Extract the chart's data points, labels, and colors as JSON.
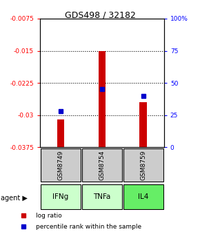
{
  "title": "GDS498 / 32182",
  "samples": [
    "GSM8749",
    "GSM8754",
    "GSM8759"
  ],
  "agents": [
    "IFNg",
    "TNFa",
    "IL4"
  ],
  "bar_bottom": -0.0375,
  "log_ratio_values": [
    -0.031,
    -0.015,
    -0.027
  ],
  "percentile_values": [
    28,
    45,
    40
  ],
  "ylim_left": [
    -0.0375,
    -0.0075
  ],
  "yticks_left": [
    -0.0375,
    -0.03,
    -0.0225,
    -0.015,
    -0.0075
  ],
  "ytick_labels_left": [
    "-0.0375",
    "-0.03",
    "-0.0225",
    "-0.015",
    "-0.0075"
  ],
  "ylim_right": [
    0,
    100
  ],
  "yticks_right": [
    0,
    25,
    50,
    75,
    100
  ],
  "ytick_labels_right": [
    "0",
    "25",
    "50",
    "75",
    "100%"
  ],
  "bar_color": "#cc0000",
  "dot_color": "#0000cc",
  "sample_box_color": "#cccccc",
  "agent_box_colors": [
    "#ccffcc",
    "#ccffcc",
    "#66ee66"
  ],
  "legend_items": [
    "log ratio",
    "percentile rank within the sample"
  ],
  "legend_colors": [
    "#cc0000",
    "#0000cc"
  ],
  "bar_width": 0.18
}
